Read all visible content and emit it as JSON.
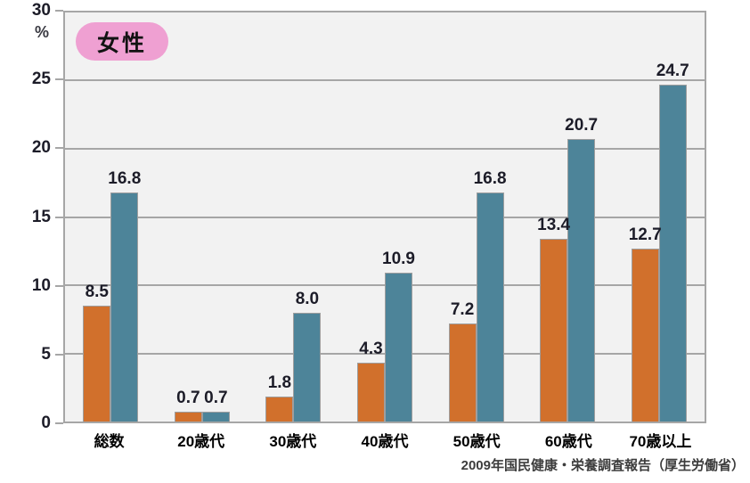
{
  "chart_data": {
    "type": "bar",
    "badge_label": "女性",
    "unit_label": "%",
    "categories": [
      "総数",
      "20歳代",
      "30歳代",
      "40歳代",
      "50歳代",
      "60歳代",
      "70歳以上"
    ],
    "series": [
      {
        "name": "orange-bars",
        "color": "#d1702c",
        "values": [
          8.5,
          0.7,
          1.8,
          4.3,
          7.2,
          13.4,
          12.7
        ],
        "labels": [
          "8.5",
          "0.7",
          "1.8",
          "4.3",
          "7.2",
          "13.4",
          "12.7"
        ]
      },
      {
        "name": "teal-bars",
        "color": "#4d8499",
        "values": [
          16.8,
          0.7,
          8.0,
          10.9,
          16.8,
          20.7,
          24.7
        ],
        "labels": [
          "16.8",
          "0.7",
          "8.0",
          "10.9",
          "16.8",
          "20.7",
          "24.7"
        ]
      }
    ],
    "ylim": [
      0,
      30
    ],
    "yticks": [
      0,
      5,
      10,
      15,
      20,
      25,
      30
    ],
    "grid": true,
    "legend_position": "none",
    "source": "2009年国民健康・栄養調査報告（厚生労働省）"
  },
  "colors": {
    "plot_background": "#f2f2f2",
    "grid_line": "#a6a6a6",
    "plot_border": "#a6a6a6",
    "bar_border": "#9e9e9e",
    "bar_orange": "#d1702c",
    "bar_teal": "#4d8499",
    "badge_background": "#efa0d2",
    "value_text": "#1c1c28",
    "category_text": "#000000",
    "source_text": "#3c3c3c"
  }
}
